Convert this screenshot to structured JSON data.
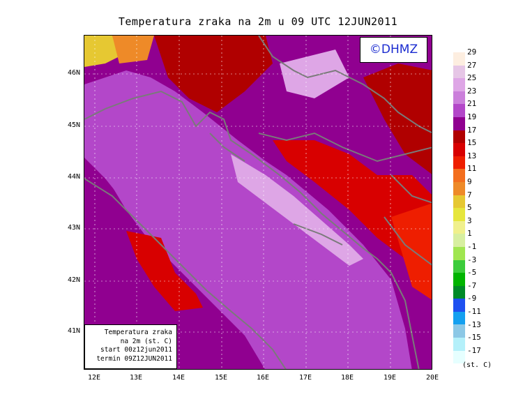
{
  "title": "Temperatura zraka na 2m u 09 UTC 12JUN2011",
  "logo": "©DHMZ",
  "info_box": {
    "line1": "Temperatura zraka",
    "line2": "na 2m (st. C)",
    "line3": "start 00z12jun2011",
    "line4": "termin 09Z12JUN2011"
  },
  "axes": {
    "y_labels": [
      "46N",
      "45N",
      "44N",
      "43N",
      "42N",
      "41N"
    ],
    "x_labels": [
      "12E",
      "13E",
      "14E",
      "15E",
      "16E",
      "17E",
      "18E",
      "19E",
      "20E"
    ]
  },
  "legend": {
    "unit": "(st. C)",
    "labels": [
      "29",
      "27",
      "25",
      "23",
      "21",
      "19",
      "17",
      "15",
      "13",
      "11",
      "9",
      "7",
      "5",
      "3",
      "1",
      "-1",
      "-3",
      "-5",
      "-7",
      "-9",
      "-11",
      "-13",
      "-15",
      "-17"
    ],
    "colors": [
      "#fdeee0",
      "#e6c6e6",
      "#dea6e6",
      "#cb7fdb",
      "#b347c9",
      "#900090",
      "#b00000",
      "#d80000",
      "#ee1e00",
      "#f36e1e",
      "#ee8a28",
      "#e6c832",
      "#e6e63c",
      "#f0f08c",
      "#d7efa0",
      "#a0e650",
      "#3ccc3c",
      "#00b400",
      "#008a28",
      "#1e50f0",
      "#14a0f0",
      "#8cc8e6",
      "#b4f0fa",
      "#e6ffff"
    ]
  },
  "colors": {
    "sea": "#b347c9",
    "land_warm": "#900090",
    "land_hot": "#d80000",
    "coast_light": "#dea6e6",
    "coastline": "#7a7a7a"
  }
}
